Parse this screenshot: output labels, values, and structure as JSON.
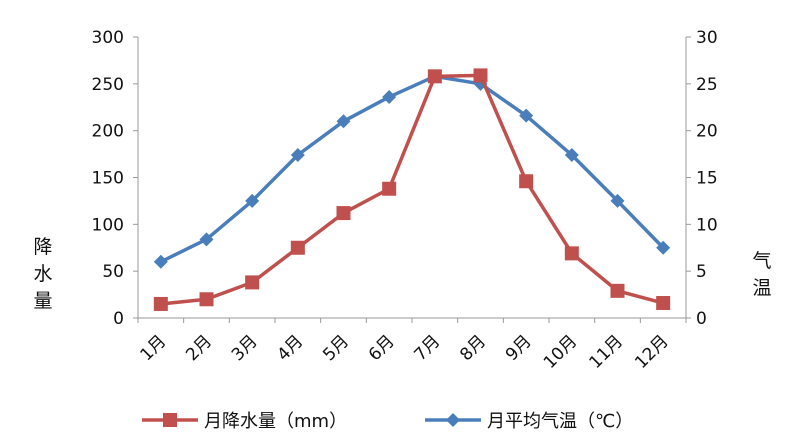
{
  "chart_data": {
    "type": "line",
    "categories": [
      "1月",
      "2月",
      "3月",
      "4月",
      "5月",
      "6月",
      "7月",
      "8月",
      "9月",
      "10月",
      "11月",
      "12月"
    ],
    "series": [
      {
        "name": "月降水量（mm）",
        "axis": "left",
        "color": "#c0504d",
        "marker": "square",
        "values": [
          15,
          20,
          38,
          75,
          112,
          138,
          258,
          259,
          146,
          69,
          29,
          16
        ]
      },
      {
        "name": "月平均气温（℃）",
        "axis": "right",
        "color": "#4a7ebb",
        "marker": "diamond",
        "values": [
          6.0,
          8.4,
          12.5,
          17.4,
          21.0,
          23.6,
          25.8,
          25.0,
          21.6,
          17.4,
          12.5,
          7.5
        ]
      }
    ],
    "y_left": {
      "label": "降水量",
      "ylim": [
        0,
        300
      ],
      "ticks": [
        0,
        50,
        100,
        150,
        200,
        250,
        300
      ]
    },
    "y_right": {
      "label": "气温",
      "ylim": [
        0,
        30
      ],
      "ticks": [
        0,
        5,
        10,
        15,
        20,
        25,
        30
      ]
    },
    "grid": false,
    "legend": "bottom"
  }
}
